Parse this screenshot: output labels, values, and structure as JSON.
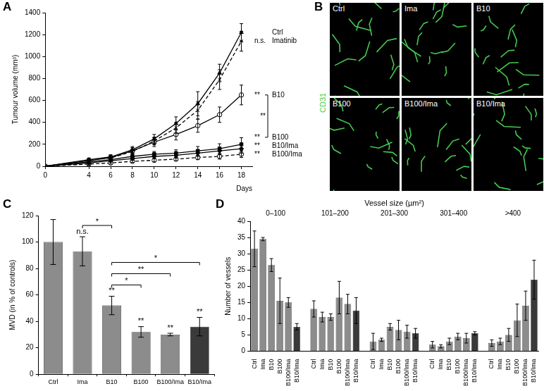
{
  "chart_data": [
    {
      "panel": "A",
      "type": "line",
      "x_label": "Days",
      "y_label": "Tumour volume (mm³)",
      "x": [
        0,
        4,
        6,
        8,
        10,
        12,
        14,
        16,
        18
      ],
      "xlim": [
        0,
        19
      ],
      "xticks": [
        0,
        4,
        6,
        8,
        10,
        12,
        14,
        16,
        18
      ],
      "ylim": [
        0,
        1400
      ],
      "yticks": [
        0,
        200,
        400,
        600,
        800,
        1000,
        1200,
        1400
      ],
      "grid": false,
      "series": [
        {
          "name": "Ctrl",
          "color": "#000000",
          "marker": "triangle",
          "line_style": "solid",
          "values": [
            0,
            60,
            85,
            150,
            250,
            390,
            570,
            850,
            1220
          ],
          "errors": [
            0,
            15,
            20,
            30,
            40,
            60,
            110,
            80,
            80
          ]
        },
        {
          "name": "Imatinib",
          "color": "#000000",
          "marker": "cross",
          "line_style": "dashed",
          "significance": "n.s.",
          "values": [
            0,
            55,
            75,
            135,
            230,
            350,
            510,
            790,
            1140
          ],
          "errors": [
            0,
            15,
            15,
            25,
            35,
            50,
            80,
            90,
            90
          ]
        },
        {
          "name": "B10",
          "color": "#000000",
          "marker": "open_circle",
          "line_style": "solid",
          "significance": "**",
          "values": [
            0,
            50,
            80,
            140,
            220,
            290,
            370,
            470,
            650
          ],
          "errors": [
            0,
            15,
            20,
            30,
            40,
            50,
            60,
            70,
            90
          ]
        },
        {
          "name": "B100",
          "color": "#000000",
          "marker": "square",
          "line_style": "solid",
          "significance": "**",
          "values": [
            0,
            40,
            60,
            90,
            110,
            120,
            140,
            160,
            200
          ],
          "errors": [
            0,
            15,
            15,
            20,
            25,
            30,
            40,
            45,
            60
          ]
        },
        {
          "name": "B10/Ima",
          "color": "#000000",
          "marker": "diamond",
          "line_style": "solid",
          "significance": "**",
          "values": [
            0,
            30,
            50,
            70,
            90,
            100,
            120,
            140,
            160
          ],
          "errors": [
            0,
            10,
            10,
            15,
            20,
            25,
            30,
            35,
            40
          ]
        },
        {
          "name": "B100/Ima",
          "color": "#000000",
          "marker": "open_circle",
          "line_style": "dashed",
          "significance": "**",
          "values": [
            0,
            20,
            30,
            45,
            55,
            65,
            80,
            90,
            110
          ],
          "errors": [
            0,
            10,
            10,
            10,
            15,
            15,
            20,
            25,
            30
          ]
        }
      ],
      "comparisons": [
        {
          "from": "B10",
          "to": "B100",
          "text": "**"
        }
      ]
    },
    {
      "panel": "C",
      "type": "bar",
      "y_label": "MVD (in % of controls)",
      "categories": [
        "Ctrl",
        "Ima",
        "B10",
        "B100",
        "B100/Ima",
        "B10/Ima"
      ],
      "values": [
        100,
        93,
        52,
        32,
        30,
        36
      ],
      "errors": [
        17,
        11,
        7,
        4,
        1,
        7
      ],
      "colors": [
        "#8c8c8c",
        "#8c8c8c",
        "#8c8c8c",
        "#8c8c8c",
        "#8c8c8c",
        "#3a3a3a"
      ],
      "annotations": [
        null,
        "n.s.",
        "**",
        "**",
        "**",
        "**"
      ],
      "comparisons": [
        {
          "from": "Ima",
          "to": "B10",
          "text": "*"
        },
        {
          "from": "B10",
          "to": "B100",
          "text": "*"
        },
        {
          "from": "B10",
          "to": "B10/Ima",
          "text": "*"
        },
        {
          "from": "B10",
          "to": "B100/Ima",
          "text": "**"
        }
      ],
      "ylim": [
        0,
        120
      ],
      "yticks": [
        0,
        20,
        40,
        60,
        80,
        100,
        120
      ],
      "grid": false
    },
    {
      "panel": "D",
      "type": "bar",
      "title": "Vessel size (µm²)",
      "y_label": "Number of vessels",
      "categories": [
        "0–100",
        "101–200",
        "201–300",
        "301–400",
        ">400"
      ],
      "ylim": [
        0,
        40
      ],
      "yticks": [
        0,
        5,
        10,
        15,
        20,
        25,
        30,
        35,
        40
      ],
      "grid": false,
      "series": [
        {
          "name": "Ctrl",
          "color": "#8c8c8c",
          "values": [
            31.5,
            13,
            3,
            2,
            2.5
          ],
          "errors": [
            5.5,
            2.5,
            2.5,
            1,
            1
          ]
        },
        {
          "name": "Ima",
          "color": "#8c8c8c",
          "values": [
            34.5,
            10.5,
            3.5,
            1.5,
            3
          ],
          "errors": [
            0.5,
            1.5,
            0.5,
            0.5,
            1
          ]
        },
        {
          "name": "B10",
          "color": "#8c8c8c",
          "values": [
            26.5,
            10.5,
            7.5,
            3,
            5
          ],
          "errors": [
            2,
            1,
            1,
            1,
            2
          ]
        },
        {
          "name": "B100",
          "color": "#8c8c8c",
          "values": [
            15.5,
            16.5,
            6.5,
            4.5,
            9.5
          ],
          "errors": [
            7,
            5,
            3,
            1,
            5
          ]
        },
        {
          "name": "B100/Ima",
          "color": "#8c8c8c",
          "values": [
            15,
            14.5,
            6,
            4,
            14
          ],
          "errors": [
            1.5,
            3,
            2,
            1.5,
            4.5
          ]
        },
        {
          "name": "B10/Ima",
          "color": "#3a3a3a",
          "values": [
            7.5,
            12.5,
            5.5,
            5.5,
            22
          ],
          "errors": [
            1,
            4,
            1.5,
            0.5,
            6
          ]
        }
      ]
    }
  ],
  "images": {
    "panel": "B",
    "stain": "CD31",
    "labels": [
      "Ctrl",
      "Ima",
      "B10",
      "B100",
      "B100/Ima",
      "B10/Ima"
    ]
  }
}
